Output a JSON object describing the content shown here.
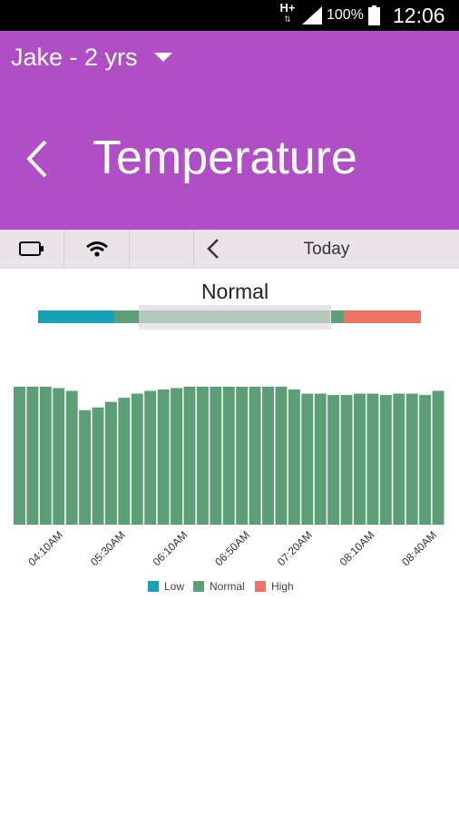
{
  "status_bar": {
    "network": "H+",
    "network_arrows": "⇅",
    "battery_percent": "100%",
    "time": "12:06"
  },
  "header": {
    "child_selector": "Jake - 2 yrs",
    "title": "Temperature",
    "background_color": "#b04fc5"
  },
  "toolbar": {
    "date_label": "Today"
  },
  "range": {
    "status_label": "Normal",
    "segments": [
      {
        "name": "Low",
        "color": "#17a2b8"
      },
      {
        "name": "Normal",
        "color": "#5c9e76"
      },
      {
        "name": "High",
        "color": "#f07262"
      }
    ]
  },
  "chart_data": {
    "type": "bar",
    "x_tick_labels": [
      "04:10AM",
      "05:30AM",
      "06:10AM",
      "06:50AM",
      "07:20AM",
      "08:10AM",
      "08:40AM"
    ],
    "series": [
      {
        "name": "Normal",
        "color": "#5c9e76",
        "values": [
          1.0,
          1.0,
          1.0,
          0.99,
          0.97,
          0.83,
          0.85,
          0.89,
          0.92,
          0.95,
          0.97,
          0.98,
          0.99,
          1.0,
          1.0,
          1.0,
          1.0,
          1.0,
          1.0,
          1.0,
          1.0,
          0.98,
          0.95,
          0.95,
          0.94,
          0.94,
          0.95,
          0.95,
          0.94,
          0.95,
          0.95,
          0.94,
          0.97
        ]
      }
    ],
    "legend": [
      {
        "label": "Low",
        "color": "#17a2b8"
      },
      {
        "label": "Normal",
        "color": "#5c9e76"
      },
      {
        "label": "High",
        "color": "#f07262"
      }
    ],
    "legend_position": "bottom"
  }
}
